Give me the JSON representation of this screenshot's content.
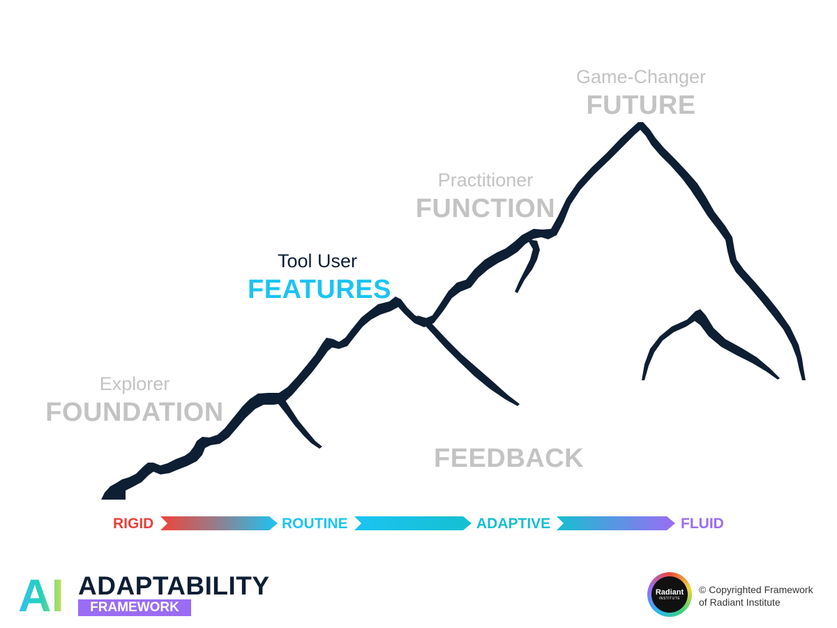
{
  "stages": [
    {
      "role": "Explorer",
      "name": "FOUNDATION"
    },
    {
      "role": "Tool User",
      "name": "FEATURES"
    },
    {
      "role": "Practitioner",
      "name": "FUNCTION"
    },
    {
      "role": "Game-Changer",
      "name": "FUTURE"
    }
  ],
  "feedback": "FEEDBACK",
  "scale": {
    "items": [
      "RIGID",
      "ROUTINE",
      "ADAPTIVE",
      "FLUID"
    ],
    "colors": [
      "#e8413c",
      "#1bc4f2",
      "#16bfd0",
      "#9b6cf4"
    ]
  },
  "logo": {
    "ai": "AI",
    "title": "ADAPTABILITY",
    "subtitle": "FRAMEWORK"
  },
  "badge": {
    "name": "Radiant",
    "sub": "INSTITUTE"
  },
  "copyright": {
    "line1": "© Copyrighted Framework",
    "line2": "of Radiant Institute"
  },
  "colors": {
    "mountain": "#0e1e33",
    "highlight": "#1bc4f2",
    "muted": "#c3c3c3",
    "accent_purple": "#9b6cf4"
  }
}
